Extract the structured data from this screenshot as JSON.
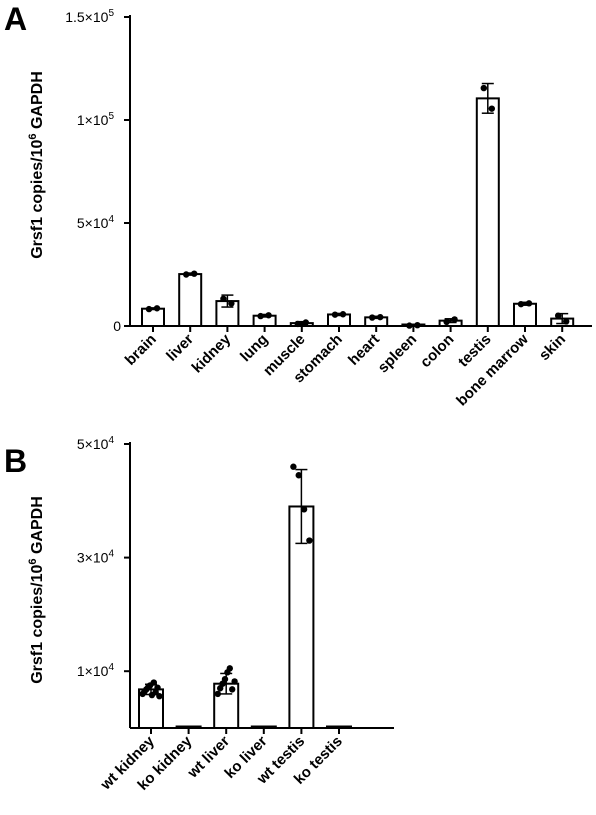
{
  "chart_data": [
    {
      "panel": "A",
      "type": "bar",
      "ylabel_main": "Grsf1 copies/10",
      "ylabel_sup": "6",
      "ylabel_tail": " GAPDH",
      "ylim": [
        0,
        150000
      ],
      "yticks": [
        {
          "value": 0,
          "label": "0",
          "sup": ""
        },
        {
          "value": 50000,
          "label": "5×10",
          "sup": "4"
        },
        {
          "value": 100000,
          "label": "1×10",
          "sup": "5"
        },
        {
          "value": 150000,
          "label": "1.5×10",
          "sup": "5"
        }
      ],
      "categories": [
        "brain",
        "liver",
        "kidney",
        "lung",
        "muscle",
        "stomach",
        "heart",
        "spleen",
        "colon",
        "testis",
        "bone marrow",
        "skin"
      ],
      "values": [
        8400,
        25200,
        12100,
        5000,
        1400,
        5600,
        4200,
        300,
        2600,
        110500,
        10800,
        3600
      ],
      "errors": [
        400,
        500,
        2900,
        600,
        700,
        500,
        500,
        200,
        900,
        7200,
        700,
        2400
      ],
      "points": [
        [
          8200,
          8600
        ],
        [
          25000,
          25400
        ],
        [
          13200,
          11000
        ],
        [
          4800,
          5200
        ],
        [
          1000,
          1700
        ],
        [
          5500,
          5700
        ],
        [
          4100,
          4300
        ],
        [
          200,
          400
        ],
        [
          2000,
          3200
        ],
        [
          115500,
          105500
        ],
        [
          10600,
          11000
        ],
        [
          5000,
          2200
        ]
      ]
    },
    {
      "panel": "B",
      "type": "bar",
      "ylabel_main": "Grsf1 copies/10",
      "ylabel_sup": "6",
      "ylabel_tail": " GAPDH",
      "ylim": [
        0,
        50000
      ],
      "yticks": [
        {
          "value": 10000,
          "label": "1×10",
          "sup": "4"
        },
        {
          "value": 30000,
          "label": "3×10",
          "sup": "4"
        },
        {
          "value": 50000,
          "label": "5×10",
          "sup": "4"
        }
      ],
      "categories": [
        "wt kidney",
        "ko kidney",
        "wt liver",
        "ko liver",
        "wt testis",
        "ko testis"
      ],
      "values": [
        6800,
        100,
        7800,
        100,
        39000,
        100
      ],
      "errors": [
        900,
        0,
        1800,
        0,
        6500,
        0
      ],
      "points": [
        [
          6000,
          6400,
          6800,
          7200,
          7500,
          5800,
          8000,
          6300,
          7100,
          5600
        ],
        [],
        [
          6000,
          7000,
          7800,
          8600,
          9800,
          10500,
          6800,
          8200
        ],
        [],
        [
          46000,
          44500,
          38500,
          33000
        ],
        []
      ]
    }
  ]
}
